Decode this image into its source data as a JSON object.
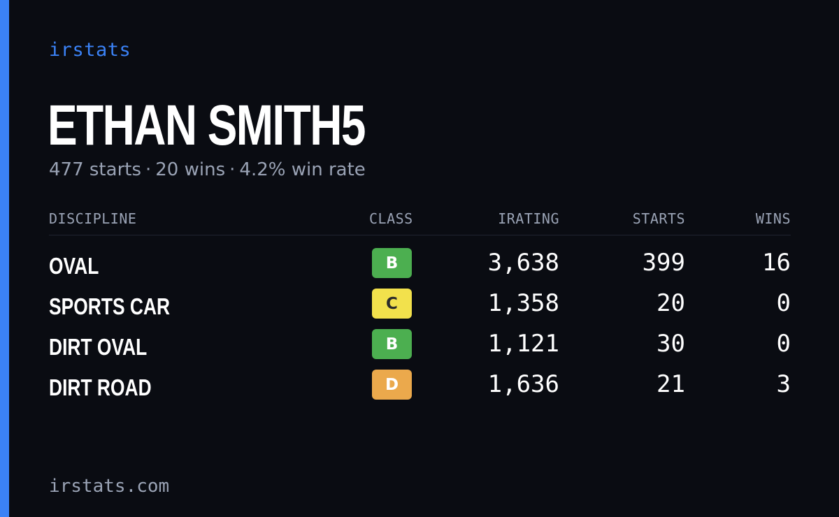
{
  "brand": "irstats",
  "player": {
    "name": "ETHAN SMITH5",
    "starts": "477 starts",
    "wins": "20 wins",
    "win_rate": "4.2% win rate",
    "separator": "·"
  },
  "table": {
    "headers": {
      "discipline": "DISCIPLINE",
      "class": "CLASS",
      "irating": "IRATING",
      "starts": "STARTS",
      "wins": "WINS"
    },
    "rows": [
      {
        "discipline": "OVAL",
        "class": "B",
        "class_color": "#4caf50",
        "class_text_color": "#ffffff",
        "irating": "3,638",
        "starts": "399",
        "wins": "16"
      },
      {
        "discipline": "SPORTS CAR",
        "class": "C",
        "class_color": "#f2e14c",
        "class_text_color": "#2b2b2b",
        "irating": "1,358",
        "starts": "20",
        "wins": "0"
      },
      {
        "discipline": "DIRT OVAL",
        "class": "B",
        "class_color": "#4caf50",
        "class_text_color": "#ffffff",
        "irating": "1,121",
        "starts": "30",
        "wins": "0"
      },
      {
        "discipline": "DIRT ROAD",
        "class": "D",
        "class_color": "#eba94c",
        "class_text_color": "#ffffff",
        "irating": "1,636",
        "starts": "21",
        "wins": "3"
      }
    ]
  },
  "footer": "irstats.com",
  "colors": {
    "accent": "#3b82f6",
    "background": "#0a0c12",
    "muted": "#9aa3b5"
  }
}
